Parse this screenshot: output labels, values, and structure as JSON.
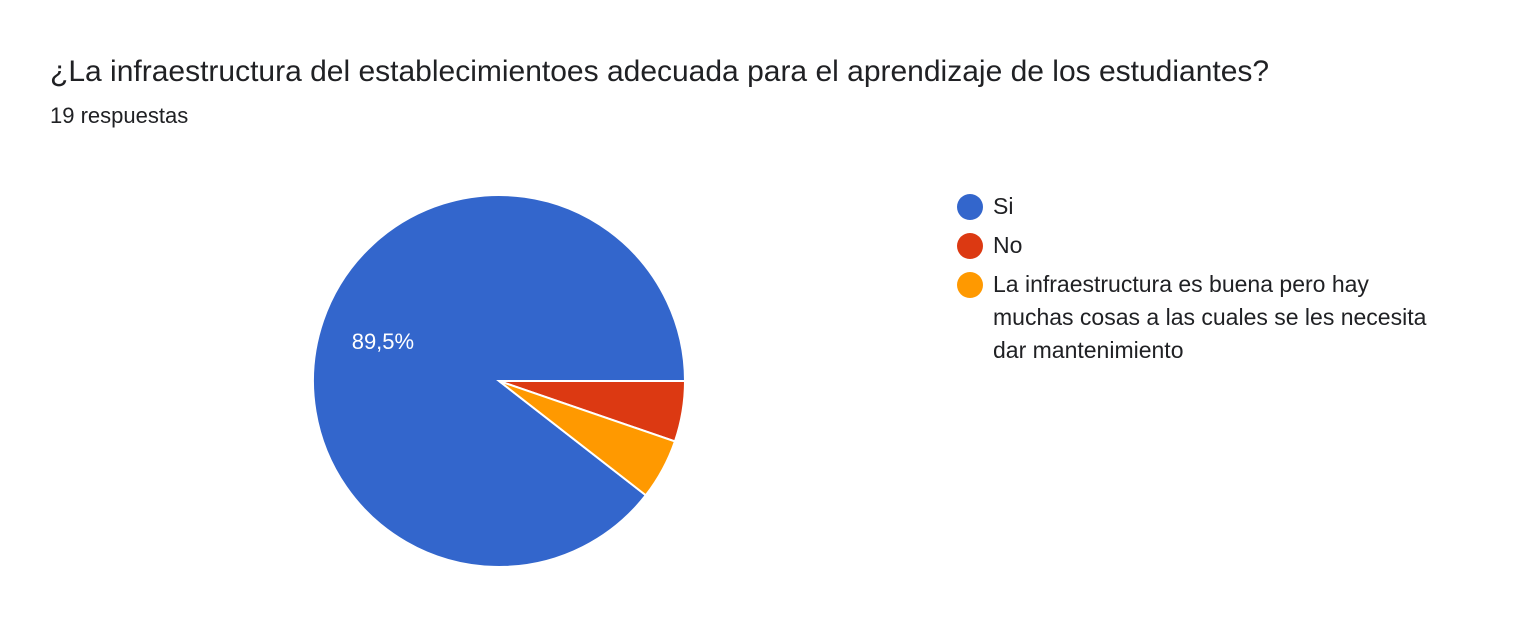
{
  "header": {
    "title": "¿La infraestructura del establecimientoes adecuada para el aprendizaje de los estudiantes?",
    "responses": "19 respuestas"
  },
  "chart_data": {
    "type": "pie",
    "title": "¿La infraestructura del establecimientoes adecuada para el aprendizaje de los estudiantes?",
    "total_responses": 19,
    "slices": [
      {
        "label": "Si",
        "count": 17,
        "percent": 89.5,
        "percent_label": "89,5%",
        "color": "#3366cc",
        "show_label": true
      },
      {
        "label": "No",
        "count": 1,
        "percent": 5.3,
        "percent_label": "",
        "color": "#dc3912",
        "show_label": false
      },
      {
        "label": "La infraestructura es buena pero hay muchas cosas a las cuales se les necesita dar mantenimiento",
        "count": 1,
        "percent": 5.3,
        "percent_label": "",
        "color": "#ff9900",
        "show_label": false
      }
    ],
    "legend_position": "right"
  },
  "legend": {
    "items": [
      {
        "label": "Si",
        "color": "#3366cc"
      },
      {
        "label": "No",
        "color": "#dc3912"
      },
      {
        "label": "La infraestructura es buena pero hay muchas cosas a las cuales se les necesita dar mantenimiento",
        "color": "#ff9900"
      }
    ]
  }
}
